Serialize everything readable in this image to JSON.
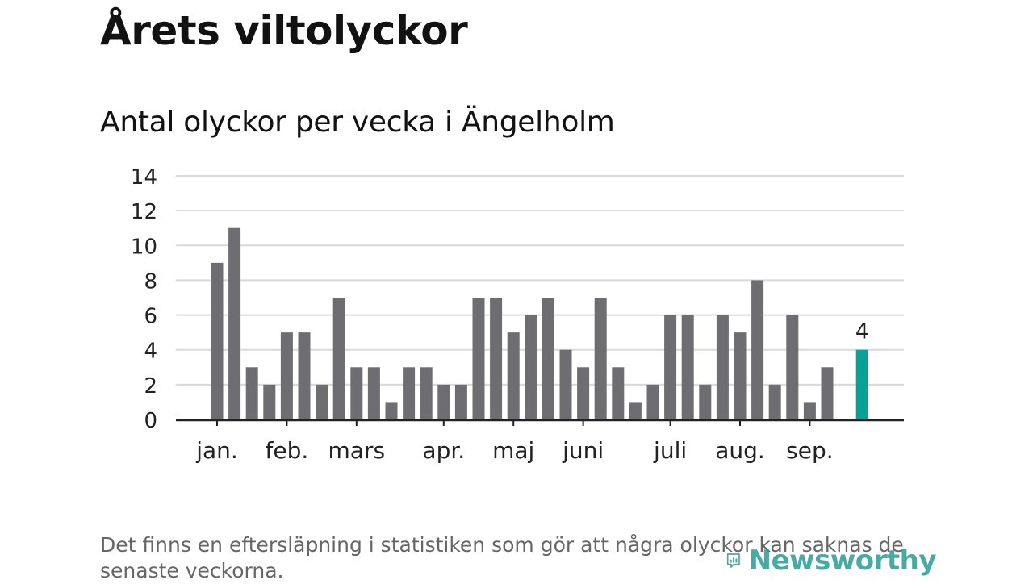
{
  "title": "Årets viltolyckor",
  "subtitle": "Antal olyckor per vecka i Ängelholm",
  "footnote": "Det finns en eftersläpning i statistiken som gör att några olyckor kan saknas de senaste veckorna.",
  "brand": {
    "name": "Newsworthy",
    "icon": "newsworthy-logo-icon",
    "color": "#2a9c94"
  },
  "colors": {
    "bar": "#6e6d72",
    "highlight": "#0aa097",
    "grid": "#d9d9d9",
    "axis": "#222222"
  },
  "chart_data": {
    "type": "bar",
    "title": "Antal olyckor per vecka i Ängelholm",
    "xlabel": "",
    "ylabel": "",
    "ylim": [
      0,
      14
    ],
    "yticks": [
      0,
      2,
      4,
      6,
      8,
      10,
      12,
      14
    ],
    "grid": true,
    "month_labels": [
      {
        "label": "jan.",
        "week_index": 0
      },
      {
        "label": "feb.",
        "week_index": 4
      },
      {
        "label": "mars",
        "week_index": 8
      },
      {
        "label": "apr.",
        "week_index": 13
      },
      {
        "label": "maj",
        "week_index": 17
      },
      {
        "label": "juni",
        "week_index": 21
      },
      {
        "label": "juli",
        "week_index": 26
      },
      {
        "label": "aug.",
        "week_index": 30
      },
      {
        "label": "sep.",
        "week_index": 34
      }
    ],
    "values": [
      9,
      11,
      3,
      2,
      5,
      5,
      2,
      7,
      3,
      3,
      1,
      3,
      3,
      2,
      2,
      7,
      7,
      5,
      6,
      7,
      4,
      3,
      7,
      3,
      1,
      2,
      6,
      6,
      2,
      6,
      5,
      8,
      2,
      6,
      1,
      3,
      null,
      4
    ],
    "highlight": {
      "index": 37,
      "label": "4"
    }
  }
}
